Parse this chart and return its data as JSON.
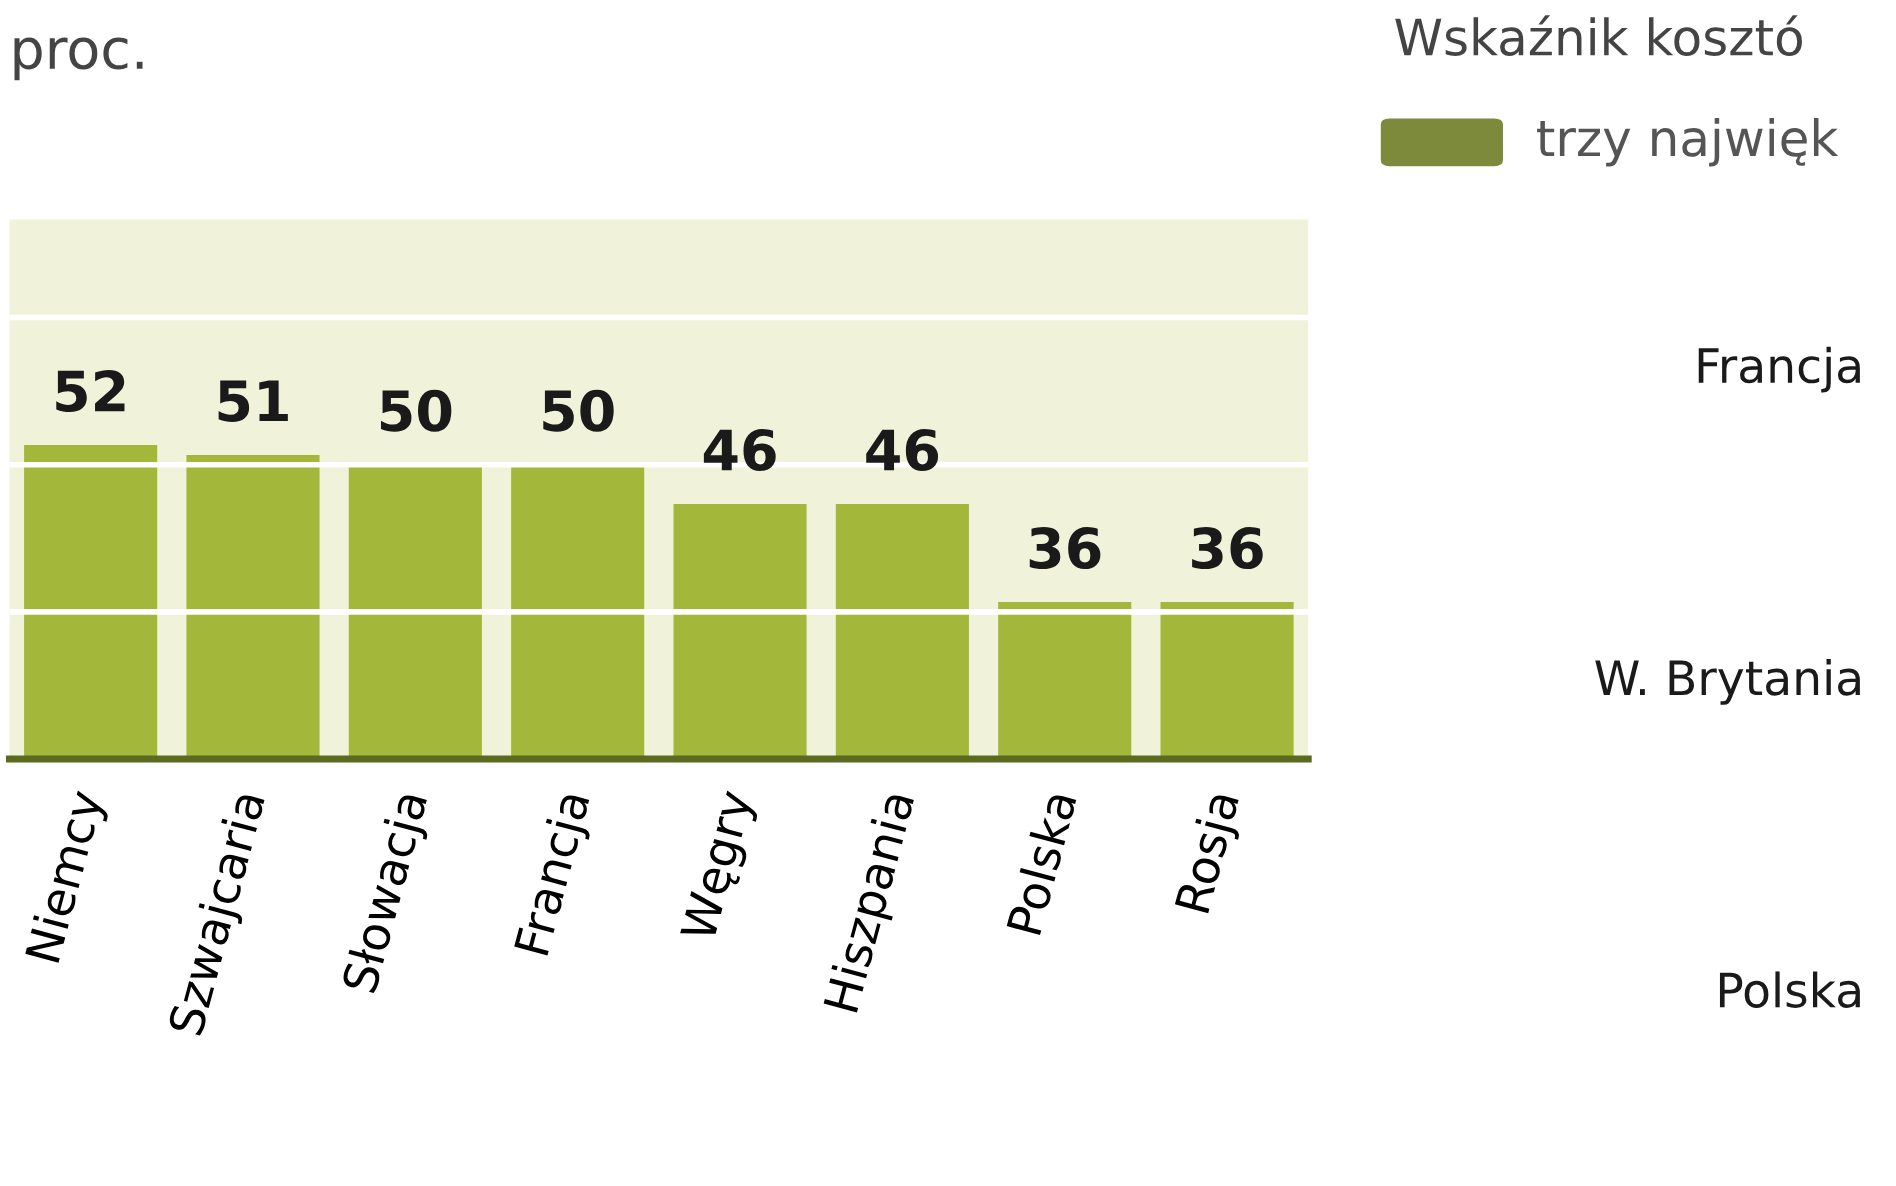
{
  "chart_data": [
    {
      "type": "bar",
      "title": "proc.",
      "categories": [
        "Niemcy",
        "Szwajcaria",
        "Słowacja",
        "Francja",
        "Węgry",
        "Hiszpania",
        "Polska",
        "Rosja"
      ],
      "values": [
        52,
        51,
        50,
        50,
        46,
        46,
        36,
        36
      ],
      "color": "#a3b83a",
      "data_labels": true,
      "ylim": [
        20,
        75
      ],
      "yticks": [
        {
          "value": 35,
          "label": null
        },
        {
          "value": 50,
          "label": null
        },
        {
          "value": 65,
          "label": null
        }
      ],
      "grid": "y",
      "tick_labels": "x"
    },
    {
      "type": "other",
      "title": "Wskaźnik kosztó",
      "annotations": [
        "trzy najwięk"
      ],
      "categories": [
        "Francja",
        "W. Brytania",
        "Polska"
      ],
      "color": "#7d8a3c"
    }
  ]
}
